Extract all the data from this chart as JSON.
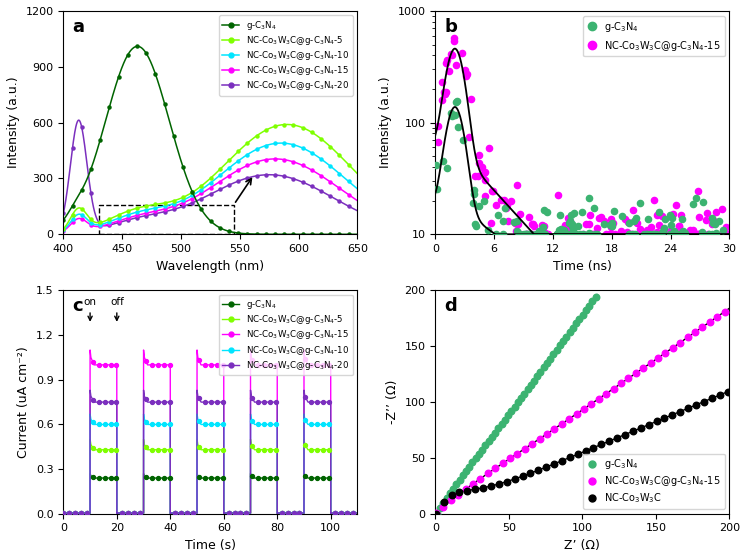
{
  "panel_a": {
    "xlabel": "Wavelength (nm)",
    "ylabel": "Intensity (a.u.)",
    "xlim": [
      400,
      650
    ],
    "ylim": [
      0,
      1200
    ],
    "yticks": [
      0,
      300,
      600,
      900,
      1200
    ],
    "xticks": [
      400,
      450,
      500,
      550,
      600,
      650
    ]
  },
  "panel_b": {
    "xlabel": "Time (ns)",
    "ylabel": "Intensity (a.u.)",
    "xlim": [
      0,
      30
    ],
    "ylim_log": [
      10,
      1000
    ],
    "xticks": [
      0,
      6,
      12,
      18,
      24,
      30
    ]
  },
  "panel_c": {
    "xlabel": "Time (s)",
    "ylabel": "Current (uA cm⁻²)",
    "xlim": [
      0,
      110
    ],
    "ylim": [
      0,
      1.5
    ],
    "yticks": [
      0.0,
      0.3,
      0.6,
      0.9,
      1.2,
      1.5
    ],
    "xticks": [
      0,
      20,
      40,
      60,
      80,
      100
    ]
  },
  "panel_d": {
    "xlabel": "Z’ (Ω)",
    "ylabel": "-Z’’ (Ω)",
    "xlim": [
      0,
      200
    ],
    "ylim": [
      0,
      200
    ],
    "xticks": [
      0,
      50,
      100,
      150,
      200
    ],
    "yticks": [
      0,
      50,
      100,
      150,
      200
    ]
  }
}
